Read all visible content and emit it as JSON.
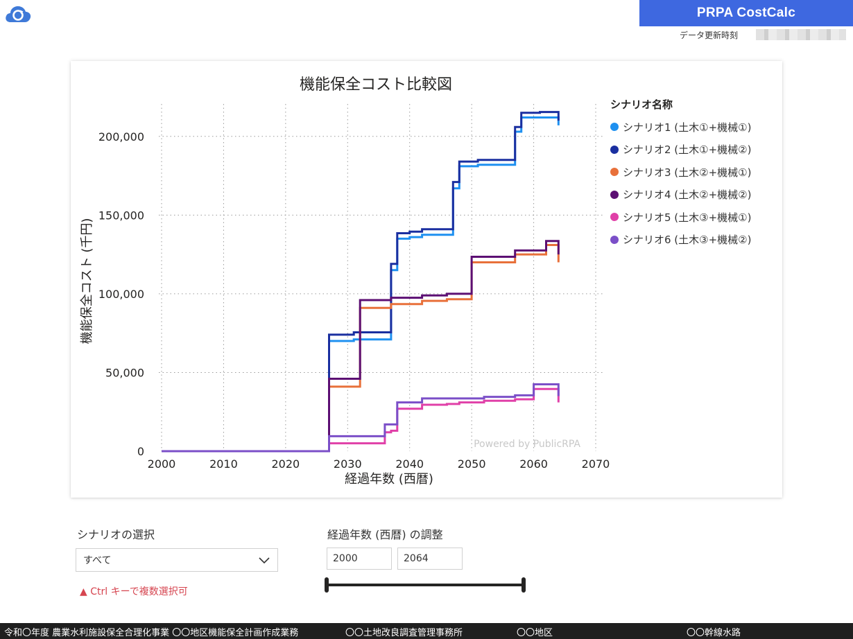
{
  "header": {
    "brand": "PRPA CostCalc",
    "update_label": "データ更新時刻",
    "update_value": "",
    "colors": {
      "brand_bg": "#3e68e0",
      "logo": "#3f7ad8"
    },
    "logo_icon": "cloud-refresh-icon"
  },
  "chart_data": {
    "type": "line",
    "title": "機能保全コスト比較図",
    "xlabel": "経過年数 (西暦)",
    "ylabel": "機能保全コスト (千円)",
    "xlim": [
      2000,
      2070
    ],
    "ylim": [
      0,
      225000
    ],
    "x_ticks": [
      2000,
      2010,
      2020,
      2030,
      2040,
      2050,
      2060,
      2070
    ],
    "y_ticks": [
      0,
      50000,
      100000,
      150000,
      200000
    ],
    "y_tick_labels": [
      "0",
      "50,000",
      "100,000",
      "150,000",
      "200,000"
    ],
    "grid": "dotted",
    "step": true,
    "watermark": "Powered by PublicRPA",
    "legend_title": "シナリオ名称",
    "legend_position": "right",
    "series": [
      {
        "name": "シナリオ1 (土木①+機械①)",
        "color": "#1e90f0",
        "points": [
          [
            2000,
            0
          ],
          [
            2027,
            0
          ],
          [
            2027,
            70000
          ],
          [
            2031,
            70000
          ],
          [
            2031,
            71000
          ],
          [
            2037,
            71000
          ],
          [
            2037,
            115000
          ],
          [
            2038,
            115000
          ],
          [
            2038,
            135000
          ],
          [
            2040,
            135000
          ],
          [
            2040,
            136000
          ],
          [
            2042,
            136000
          ],
          [
            2042,
            137500
          ],
          [
            2047,
            137500
          ],
          [
            2047,
            167000
          ],
          [
            2048,
            167000
          ],
          [
            2048,
            181000
          ],
          [
            2051,
            181000
          ],
          [
            2051,
            182000
          ],
          [
            2057,
            182000
          ],
          [
            2057,
            203000
          ],
          [
            2058,
            203000
          ],
          [
            2058,
            212000
          ],
          [
            2064,
            212000
          ],
          [
            2064,
            207000
          ]
        ]
      },
      {
        "name": "シナリオ2 (土木①+機械②)",
        "color": "#1a2fa0",
        "points": [
          [
            2000,
            0
          ],
          [
            2027,
            0
          ],
          [
            2027,
            74000
          ],
          [
            2031,
            74000
          ],
          [
            2031,
            75500
          ],
          [
            2037,
            75500
          ],
          [
            2037,
            119000
          ],
          [
            2038,
            119000
          ],
          [
            2038,
            138500
          ],
          [
            2040,
            138500
          ],
          [
            2040,
            139500
          ],
          [
            2042,
            139500
          ],
          [
            2042,
            141000
          ],
          [
            2047,
            141000
          ],
          [
            2047,
            171000
          ],
          [
            2048,
            171000
          ],
          [
            2048,
            184000
          ],
          [
            2051,
            184000
          ],
          [
            2051,
            185000
          ],
          [
            2057,
            185000
          ],
          [
            2057,
            206000
          ],
          [
            2058,
            206000
          ],
          [
            2058,
            215000
          ],
          [
            2061,
            215000
          ],
          [
            2061,
            215500
          ],
          [
            2064,
            215500
          ],
          [
            2064,
            210000
          ]
        ]
      },
      {
        "name": "シナリオ3 (土木②+機械①)",
        "color": "#e8703a",
        "points": [
          [
            2000,
            0
          ],
          [
            2027,
            0
          ],
          [
            2027,
            41000
          ],
          [
            2032,
            41000
          ],
          [
            2032,
            91000
          ],
          [
            2037,
            91000
          ],
          [
            2037,
            93500
          ],
          [
            2042,
            93500
          ],
          [
            2042,
            95500
          ],
          [
            2046,
            95500
          ],
          [
            2046,
            96500
          ],
          [
            2050,
            96500
          ],
          [
            2050,
            120000
          ],
          [
            2057,
            120000
          ],
          [
            2057,
            125000
          ],
          [
            2062,
            125000
          ],
          [
            2062,
            131000
          ],
          [
            2064,
            131000
          ],
          [
            2064,
            120000
          ]
        ]
      },
      {
        "name": "シナリオ4 (土木②+機械②)",
        "color": "#5c0f73",
        "points": [
          [
            2000,
            0
          ],
          [
            2027,
            0
          ],
          [
            2027,
            46000
          ],
          [
            2032,
            46000
          ],
          [
            2032,
            96000
          ],
          [
            2037,
            96000
          ],
          [
            2037,
            97500
          ],
          [
            2042,
            97500
          ],
          [
            2042,
            99000
          ],
          [
            2046,
            99000
          ],
          [
            2046,
            100000
          ],
          [
            2050,
            100000
          ],
          [
            2050,
            123500
          ],
          [
            2057,
            123500
          ],
          [
            2057,
            127500
          ],
          [
            2062,
            127500
          ],
          [
            2062,
            133500
          ],
          [
            2064,
            133500
          ],
          [
            2064,
            125000
          ]
        ]
      },
      {
        "name": "シナリオ5 (土木③+機械①)",
        "color": "#e040a8",
        "points": [
          [
            2000,
            0
          ],
          [
            2027,
            0
          ],
          [
            2027,
            5000
          ],
          [
            2036,
            5000
          ],
          [
            2036,
            12000
          ],
          [
            2037,
            12000
          ],
          [
            2037,
            13000
          ],
          [
            2038,
            13000
          ],
          [
            2038,
            27000
          ],
          [
            2042,
            27000
          ],
          [
            2042,
            29500
          ],
          [
            2046,
            29500
          ],
          [
            2046,
            30000
          ],
          [
            2048,
            30000
          ],
          [
            2048,
            31000
          ],
          [
            2052,
            31000
          ],
          [
            2052,
            32000
          ],
          [
            2057,
            32000
          ],
          [
            2057,
            33000
          ],
          [
            2060,
            33000
          ],
          [
            2060,
            39500
          ],
          [
            2064,
            39500
          ],
          [
            2064,
            31000
          ]
        ]
      },
      {
        "name": "シナリオ6 (土木③+機械②)",
        "color": "#7b4fc8",
        "points": [
          [
            2000,
            0
          ],
          [
            2027,
            0
          ],
          [
            2027,
            9500
          ],
          [
            2036,
            9500
          ],
          [
            2036,
            17000
          ],
          [
            2038,
            17000
          ],
          [
            2038,
            31000
          ],
          [
            2042,
            31000
          ],
          [
            2042,
            33500
          ],
          [
            2052,
            33500
          ],
          [
            2052,
            34500
          ],
          [
            2057,
            34500
          ],
          [
            2057,
            35500
          ],
          [
            2060,
            35500
          ],
          [
            2060,
            42500
          ],
          [
            2064,
            42500
          ],
          [
            2064,
            35000
          ]
        ]
      }
    ]
  },
  "controls": {
    "scenario_label": "シナリオの選択",
    "scenario_selected": "すべて",
    "scenario_hint": "▲ Ctrl キーで複数選択可",
    "year_label": "経過年数 (西暦) の調整",
    "year_start": "2000",
    "year_end": "2064",
    "year_min": 2000,
    "year_max": 2064
  },
  "footer": {
    "project": "令和〇年度 農業水利施設保全合理化事業 〇〇地区機能保全計画作成業務",
    "office": "〇〇土地改良調査管理事務所",
    "district": "〇〇地区",
    "canal": "〇〇幹線水路"
  }
}
